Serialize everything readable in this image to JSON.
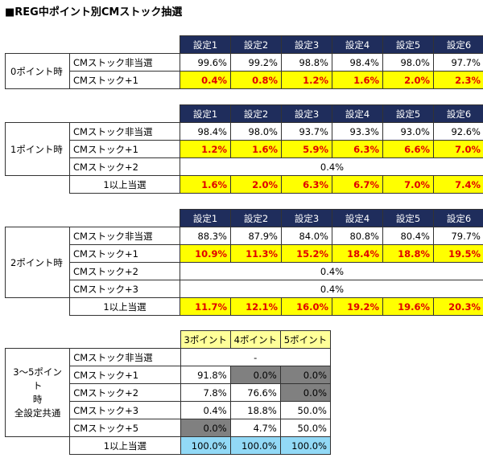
{
  "title": "■REG中ポイント別CMストック抽選",
  "headers": [
    "設定1",
    "設定2",
    "設定3",
    "設定4",
    "設定5",
    "設定6"
  ],
  "t0": {
    "row_label": "0ポイント時",
    "rows": [
      {
        "label": "CMストック非当選",
        "values": [
          "99.6%",
          "99.2%",
          "98.8%",
          "98.4%",
          "98.0%",
          "97.7%"
        ]
      },
      {
        "label": "CMストック+1",
        "values": [
          "0.4%",
          "0.8%",
          "1.2%",
          "1.6%",
          "2.0%",
          "2.3%"
        ]
      }
    ]
  },
  "t1": {
    "row_label": "1ポイント時",
    "rows": [
      {
        "label": "CMストック非当選",
        "values": [
          "98.4%",
          "98.0%",
          "93.7%",
          "93.3%",
          "93.0%",
          "92.6%"
        ]
      },
      {
        "label": "CMストック+1",
        "values": [
          "1.2%",
          "1.6%",
          "5.9%",
          "6.3%",
          "6.6%",
          "7.0%"
        ]
      },
      {
        "label": "CMストック+2",
        "merged": "0.4%"
      },
      {
        "label": "1以上当選",
        "values": [
          "1.6%",
          "2.0%",
          "6.3%",
          "6.7%",
          "7.0%",
          "7.4%"
        ]
      }
    ]
  },
  "t2": {
    "row_label": "2ポイント時",
    "rows": [
      {
        "label": "CMストック非当選",
        "values": [
          "88.3%",
          "87.9%",
          "84.0%",
          "80.8%",
          "80.4%",
          "79.7%"
        ]
      },
      {
        "label": "CMストック+1",
        "values": [
          "10.9%",
          "11.3%",
          "15.2%",
          "18.4%",
          "18.8%",
          "19.5%"
        ]
      },
      {
        "label": "CMストック+2",
        "merged": "0.4%"
      },
      {
        "label": "CMストック+3",
        "merged": "0.4%"
      },
      {
        "label": "1以上当選",
        "values": [
          "11.7%",
          "12.1%",
          "16.0%",
          "19.2%",
          "19.6%",
          "20.3%"
        ]
      }
    ]
  },
  "t3": {
    "row_label_1": "3～5ポイント",
    "row_label_2": "時",
    "row_label_3": "全設定共通",
    "headers": [
      "3ポイント",
      "4ポイント",
      "5ポイント"
    ],
    "rows": [
      {
        "label": "CMストック非当選",
        "merged": "-"
      },
      {
        "label": "CMストック+1",
        "values": [
          "91.8%",
          "0.0%",
          "0.0%"
        ]
      },
      {
        "label": "CMストック+2",
        "values": [
          "7.8%",
          "76.6%",
          "0.0%"
        ]
      },
      {
        "label": "CMストック+3",
        "values": [
          "0.4%",
          "18.8%",
          "50.0%"
        ]
      },
      {
        "label": "CMストック+5",
        "values": [
          "0.0%",
          "4.7%",
          "50.0%"
        ]
      },
      {
        "label": "1以上当選",
        "values": [
          "100.0%",
          "100.0%",
          "100.0%"
        ]
      }
    ]
  },
  "colors": {
    "header_bg": "#1f2d5c",
    "highlight_bg": "#ffff00",
    "highlight_text": "#e00000",
    "grey": "#808080",
    "blue": "#92d9f6",
    "pale_yellow": "#ffff99"
  }
}
